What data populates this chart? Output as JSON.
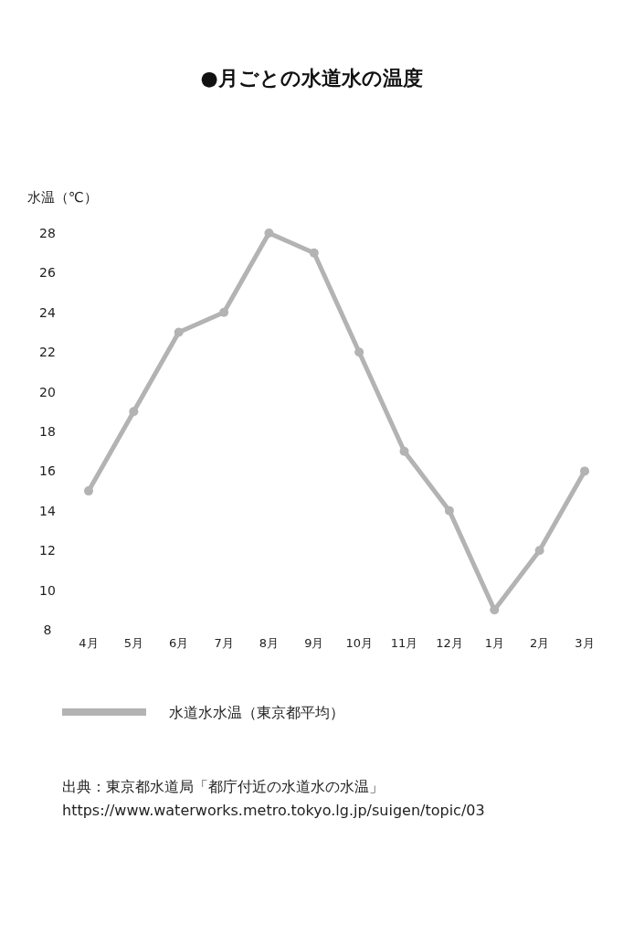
{
  "chart_data": {
    "type": "line",
    "title": "●月ごとの水道水の温度",
    "ylabel": "水温（℃）",
    "categories": [
      "4月",
      "5月",
      "6月",
      "7月",
      "8月",
      "9月",
      "10月",
      "11月",
      "12月",
      "1月",
      "2月",
      "3月"
    ],
    "series": [
      {
        "name": "水道水水温（東京都平均）",
        "color": "#b3b3b3",
        "values": [
          15,
          19,
          23,
          24,
          28,
          27,
          22,
          17,
          14,
          9,
          12,
          16
        ]
      }
    ],
    "ylim": [
      8,
      28
    ],
    "yticks": [
      8,
      10,
      12,
      14,
      16,
      18,
      20,
      22,
      24,
      26,
      28
    ],
    "legend": "bottom",
    "marker": "circle",
    "annotations": [
      "出典：東京都水道局「都庁付近の水道水の水温」",
      "https://www.waterworks.metro.tokyo.lg.jp/suigen/topic/03"
    ]
  }
}
